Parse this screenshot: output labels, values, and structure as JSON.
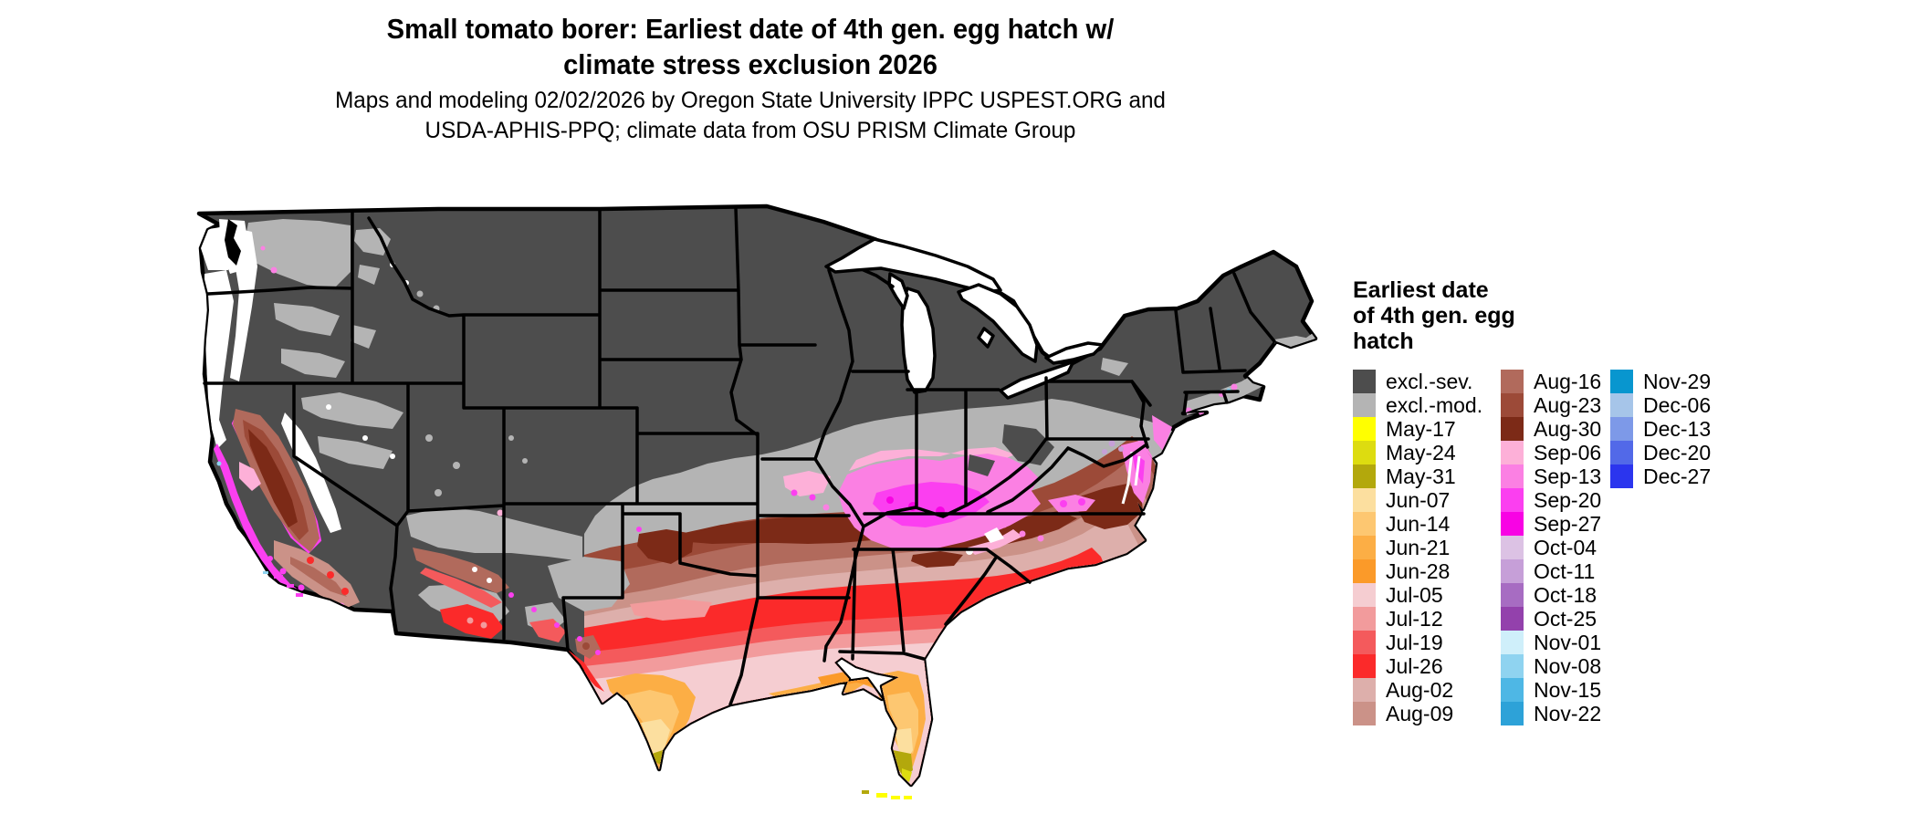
{
  "title": {
    "line1": "Small tomato borer: Earliest date of 4th gen. egg hatch w/",
    "line2": "climate stress exclusion 2026"
  },
  "subtitle": {
    "line1": "Maps and modeling 02/02/2026 by Oregon State University IPPC USPEST.ORG and",
    "line2": "USDA-APHIS-PPQ; climate data from OSU PRISM Climate Group"
  },
  "legend": {
    "title_lines": [
      "Earliest date",
      "of 4th gen. egg",
      "hatch"
    ],
    "columns": [
      [
        {
          "label": "excl.-sev.",
          "color": "#4d4d4d"
        },
        {
          "label": "excl.-mod.",
          "color": "#b4b4b4"
        },
        {
          "label": "May-17",
          "color": "#ffff00"
        },
        {
          "label": "May-24",
          "color": "#dddc10"
        },
        {
          "label": "May-31",
          "color": "#b3a80c"
        },
        {
          "label": "Jun-07",
          "color": "#fcdf9f"
        },
        {
          "label": "Jun-14",
          "color": "#fdc771"
        },
        {
          "label": "Jun-21",
          "color": "#fcae45"
        },
        {
          "label": "Jun-28",
          "color": "#fb9a29"
        },
        {
          "label": "Jul-05",
          "color": "#f5cdd1"
        },
        {
          "label": "Jul-12",
          "color": "#f29b9c"
        },
        {
          "label": "Jul-19",
          "color": "#f45a5c"
        },
        {
          "label": "Jul-26",
          "color": "#fb2a2a"
        },
        {
          "label": "Aug-02",
          "color": "#ddafab"
        },
        {
          "label": "Aug-09",
          "color": "#cb9288"
        }
      ],
      [
        {
          "label": "Aug-16",
          "color": "#b16a5c"
        },
        {
          "label": "Aug-23",
          "color": "#9c4a38"
        },
        {
          "label": "Aug-30",
          "color": "#7c2a17"
        },
        {
          "label": "Sep-06",
          "color": "#fdb0d8"
        },
        {
          "label": "Sep-13",
          "color": "#fb80e3"
        },
        {
          "label": "Sep-20",
          "color": "#fb3ff0"
        },
        {
          "label": "Sep-27",
          "color": "#f803e4"
        },
        {
          "label": "Oct-04",
          "color": "#dcc2e4"
        },
        {
          "label": "Oct-11",
          "color": "#c69fd8"
        },
        {
          "label": "Oct-18",
          "color": "#a76cc2"
        },
        {
          "label": "Oct-25",
          "color": "#9341ac"
        },
        {
          "label": "Nov-01",
          "color": "#cfeffa"
        },
        {
          "label": "Nov-08",
          "color": "#8fd3f0"
        },
        {
          "label": "Nov-15",
          "color": "#4eb7e5"
        },
        {
          "label": "Nov-22",
          "color": "#2da2d8"
        }
      ],
      [
        {
          "label": "Nov-29",
          "color": "#0896cf"
        },
        {
          "label": "Dec-06",
          "color": "#a6c5e9"
        },
        {
          "label": "Dec-13",
          "color": "#7d99e8"
        },
        {
          "label": "Dec-20",
          "color": "#5269e8"
        },
        {
          "label": "Dec-27",
          "color": "#2b35ee"
        }
      ]
    ]
  },
  "palette": {
    "excl_sev": "#4d4d4d",
    "excl_mod": "#b4b4b4",
    "may17": "#ffff00",
    "may24": "#dddc10",
    "may31": "#b3a80c",
    "jun07": "#fcdf9f",
    "jun14": "#fdc771",
    "jun21": "#fcae45",
    "jun28": "#fb9a29",
    "jul05": "#f5cdd1",
    "jul12": "#f29b9c",
    "jul19": "#f45a5c",
    "jul26": "#fb2a2a",
    "aug02": "#ddafab",
    "aug09": "#cb9288",
    "aug16": "#b16a5c",
    "aug23": "#9c4a38",
    "aug30": "#7c2a17",
    "sep06": "#fdb0d8",
    "sep13": "#fb80e3",
    "sep20": "#fb3ff0",
    "sep27": "#f803e4",
    "oct11": "#c69fd8",
    "nov08": "#8fd3f0",
    "white": "#ffffff",
    "black": "#000000",
    "background": "#ffffff"
  },
  "map": {
    "region": "Continental United States",
    "base_fill": "#4d4d4d",
    "state_border_color": "#000000",
    "water_color": "#ffffff"
  }
}
